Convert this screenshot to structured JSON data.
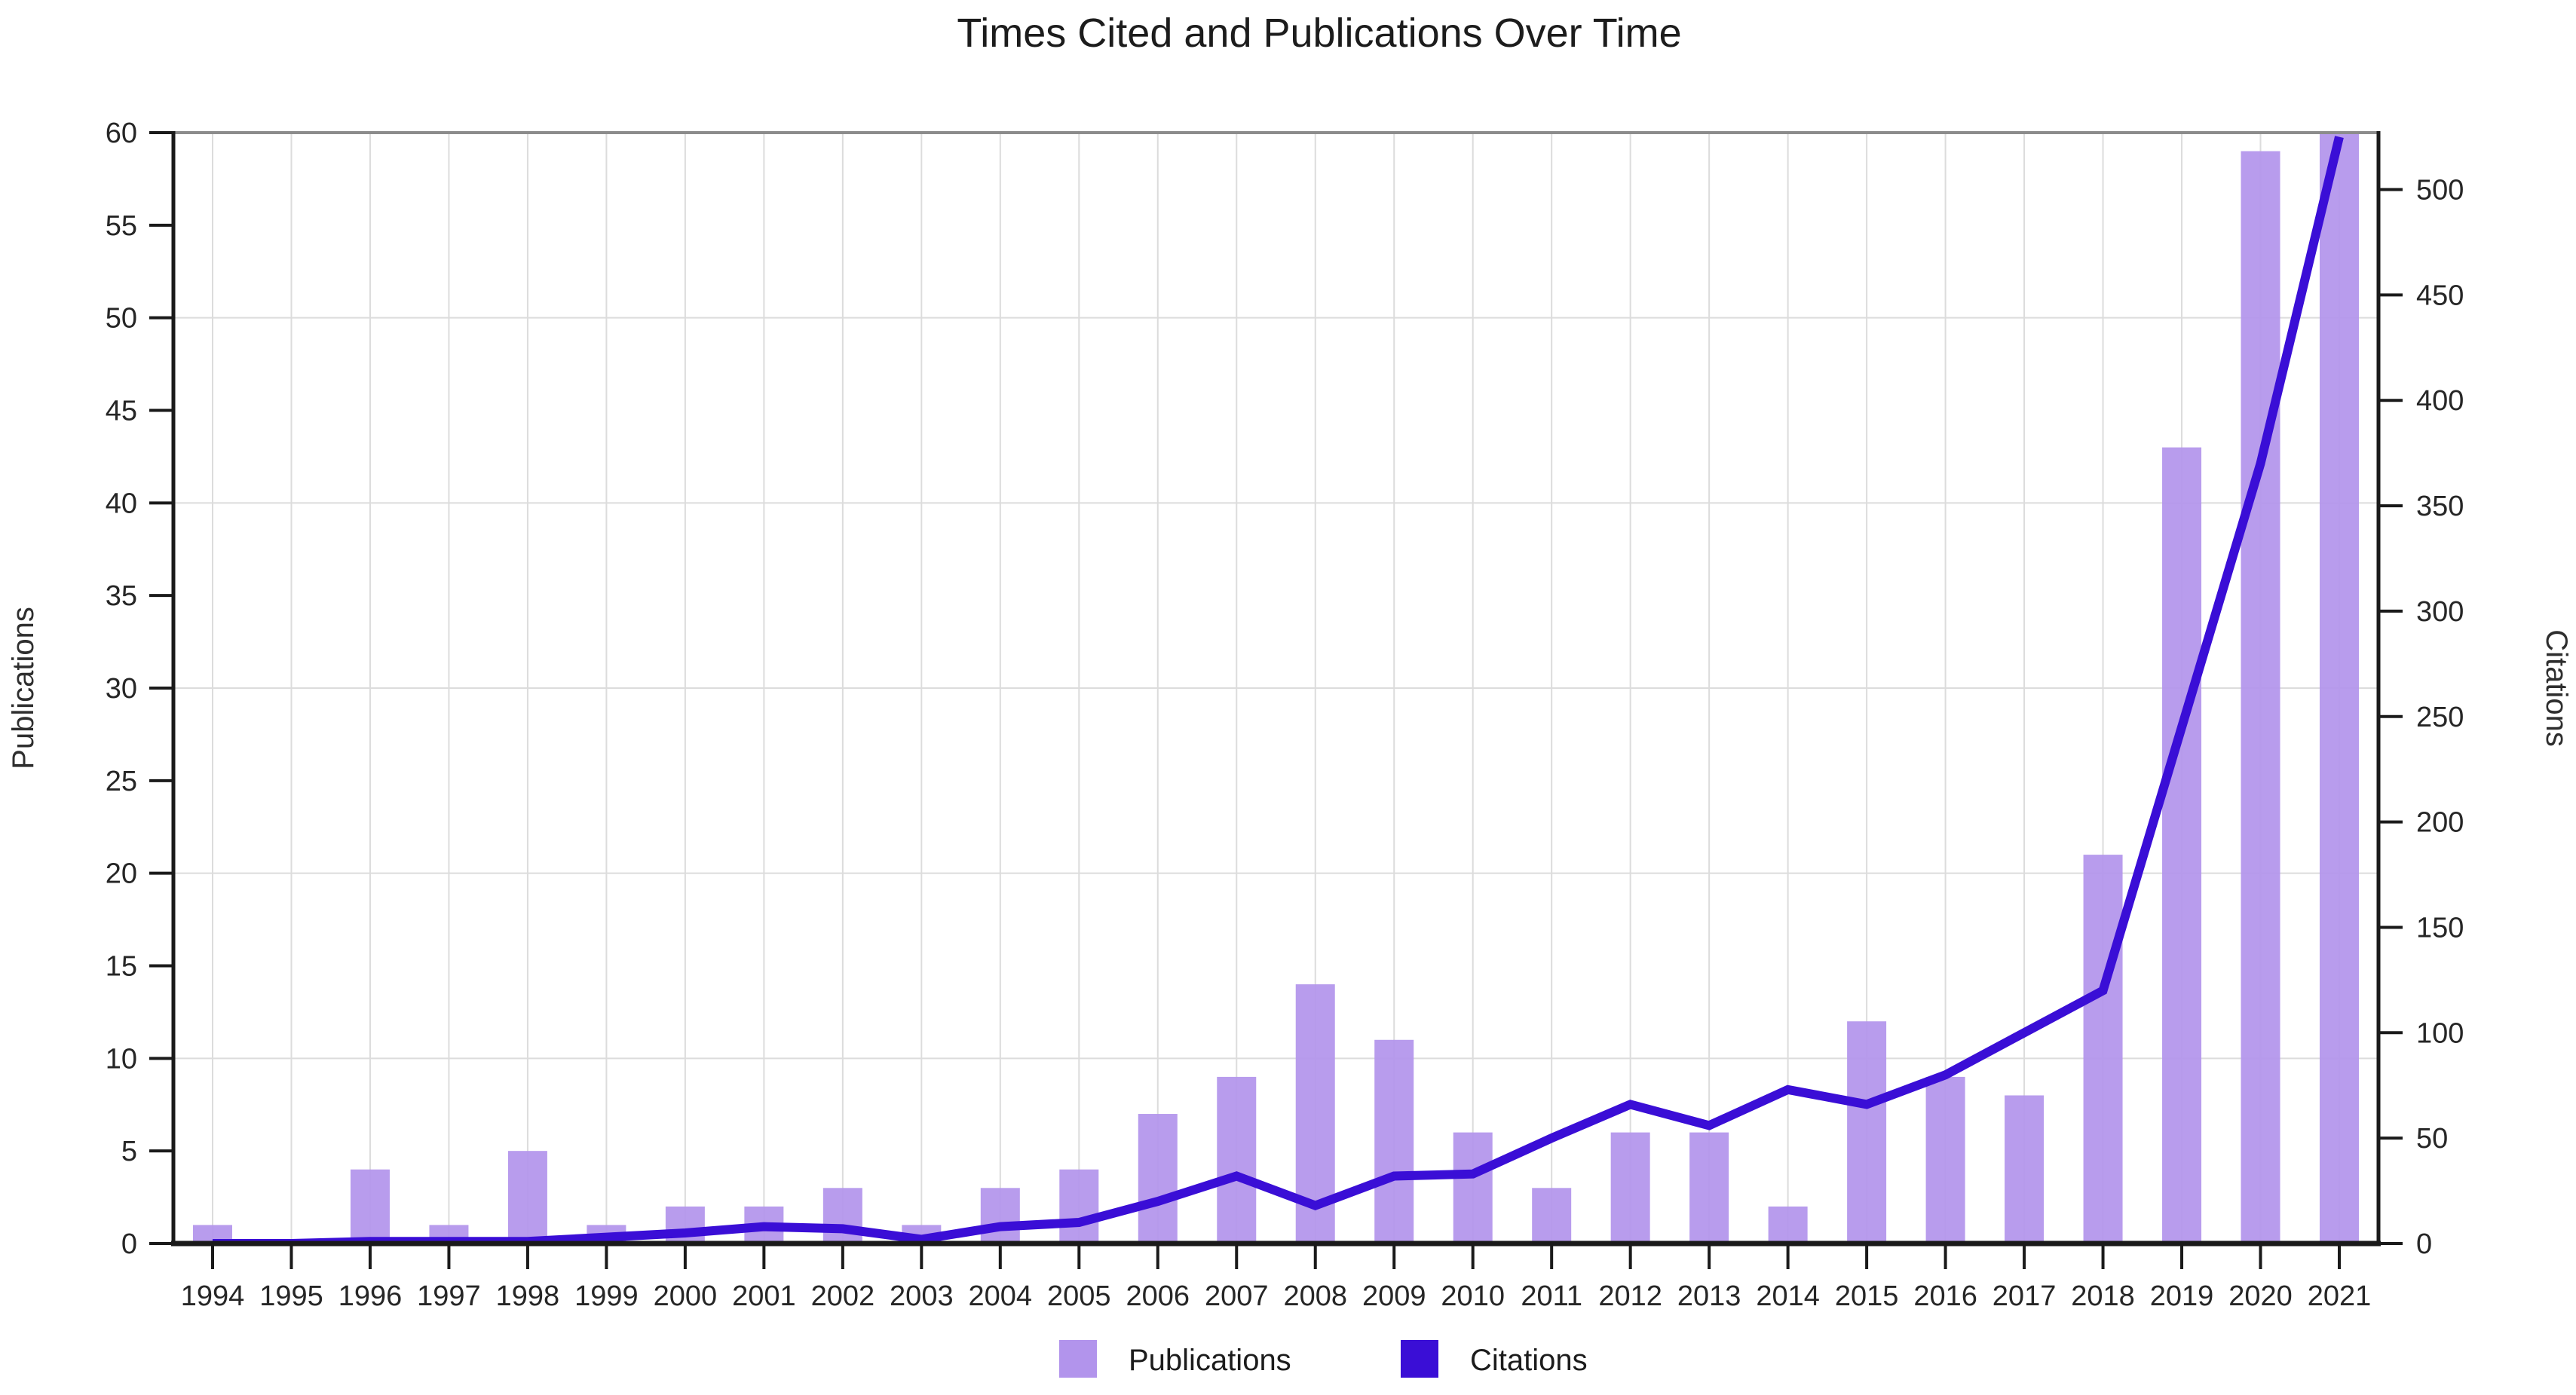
{
  "title": "Times Cited and Publications Over Time",
  "chart_data": {
    "type": "bar+line",
    "title": "Times Cited and Publications Over Time",
    "categories": [
      "1994",
      "1995",
      "1996",
      "1997",
      "1998",
      "1999",
      "2000",
      "2001",
      "2002",
      "2003",
      "2004",
      "2005",
      "2006",
      "2007",
      "2008",
      "2009",
      "2010",
      "2011",
      "2012",
      "2013",
      "2014",
      "2015",
      "2016",
      "2017",
      "2018",
      "2019",
      "2020",
      "2021"
    ],
    "series": [
      {
        "name": "Publications",
        "type": "bar",
        "axis": "left",
        "color": "#b294ec",
        "values": [
          1,
          0,
          4,
          1,
          5,
          1,
          2,
          2,
          3,
          1,
          3,
          4,
          7,
          9,
          14,
          11,
          6,
          3,
          6,
          6,
          2,
          12,
          9,
          8,
          21,
          43,
          59,
          60
        ]
      },
      {
        "name": "Citations",
        "type": "line",
        "axis": "right",
        "color": "#3a0ed6",
        "values": [
          0,
          0,
          1,
          1,
          1,
          3,
          5,
          8,
          7,
          2,
          8,
          10,
          20,
          32,
          18,
          32,
          33,
          50,
          66,
          56,
          73,
          66,
          80,
          100,
          120,
          245,
          370,
          525
        ]
      }
    ],
    "left_axis": {
      "label": "Publications",
      "min": 0,
      "max": 60,
      "ticks": [
        0,
        5,
        10,
        15,
        20,
        25,
        30,
        35,
        40,
        45,
        50,
        55,
        60
      ]
    },
    "right_axis": {
      "label": "Citations",
      "min": 0,
      "max": 527,
      "ticks": [
        0,
        50,
        100,
        150,
        200,
        250,
        300,
        350,
        400,
        450,
        500
      ]
    },
    "grid": {
      "horizontal_step_left_units": 10,
      "vertical": "one line per year",
      "color": "#dcdcdc"
    },
    "legend": {
      "position": "bottom-center",
      "items": [
        "Publications",
        "Citations"
      ]
    }
  },
  "colors": {
    "bar": "#b294ec",
    "line": "#3a0ed6",
    "grid": "#dcdcdc",
    "spine": "#1a1a1a",
    "top_spine": "#8c8c8c",
    "tick_text": "#262626"
  }
}
